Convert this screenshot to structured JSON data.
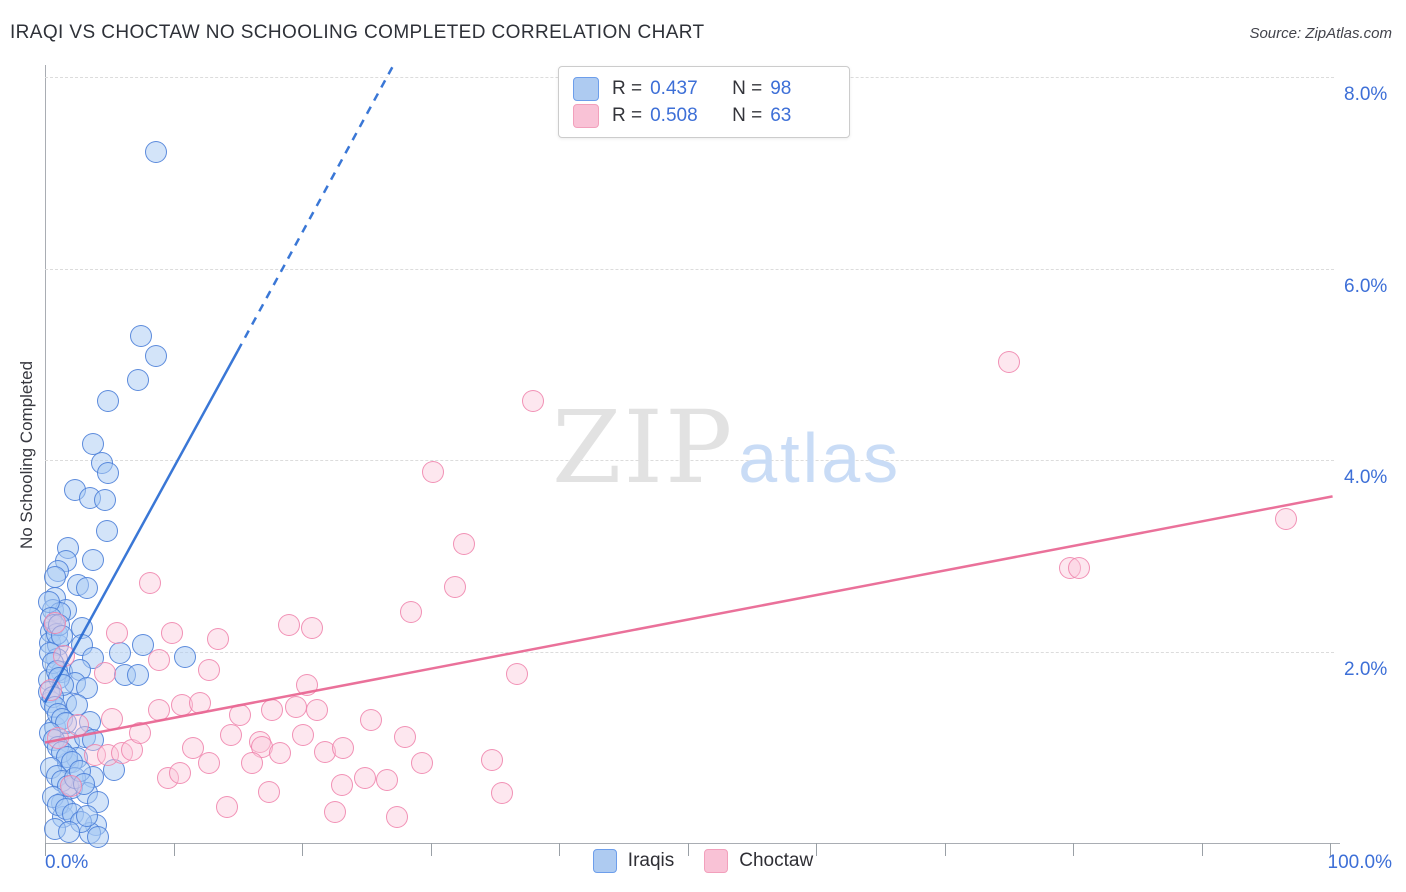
{
  "header": {
    "title": "IRAQI VS CHOCTAW NO SCHOOLING COMPLETED CORRELATION CHART",
    "source": "Source: ZipAtlas.com"
  },
  "watermark": {
    "zip": "ZIP",
    "atlas": "atlas"
  },
  "axes": {
    "y_label": "No Schooling Completed",
    "x_min_label": "0.0%",
    "x_max_label": "100.0%",
    "y_ticks": [
      {
        "value": 8,
        "label": "8.0%"
      },
      {
        "value": 6,
        "label": "6.0%"
      },
      {
        "value": 4,
        "label": "4.0%"
      },
      {
        "value": 2,
        "label": "2.0%"
      }
    ],
    "x_tick_values": [
      0,
      10,
      20,
      30,
      40,
      50,
      60,
      70,
      80,
      90,
      100
    ]
  },
  "legend_box": {
    "rows": [
      {
        "series": "iraqis",
        "r_label": "R =",
        "r_value": "0.437",
        "n_label": "N =",
        "n_value": "98"
      },
      {
        "series": "choctaw",
        "r_label": "R =",
        "r_value": "0.508",
        "n_label": "N =",
        "n_value": "63"
      }
    ]
  },
  "bottom_legend": [
    {
      "label": "Iraqis"
    },
    {
      "label": "Choctaw"
    }
  ],
  "colors": {
    "accent_blue": "#3d6fd7",
    "iraqis_fill": "#a8caf4",
    "iraqis_stroke": "#3e76d6",
    "choctaw_fill": "#fac6da",
    "choctaw_stroke": "#f082ac",
    "iraqis_trend": "#2568d2",
    "choctaw_trend": "#e8628f",
    "gridline": "#dcdcdc",
    "watermark_gray": "#e2e2e2",
    "watermark_blue": "#c9dcf6"
  },
  "chart_data": {
    "type": "scatter",
    "title": "IRAQI VS CHOCTAW NO SCHOOLING COMPLETED CORRELATION CHART",
    "xlabel": "",
    "ylabel": "No Schooling Completed",
    "x_range_percent": [
      0,
      100
    ],
    "y_range_percent": [
      0,
      8.33
    ],
    "grid": "horizontal-dashed",
    "legend_position": "bottom-center",
    "series": [
      {
        "name": "Iraqis",
        "R": 0.437,
        "N": 98,
        "points": [
          [
            8.6,
            7.22
          ],
          [
            7.5,
            5.3
          ],
          [
            8.6,
            5.09
          ],
          [
            7.2,
            4.84
          ],
          [
            4.9,
            4.62
          ],
          [
            3.7,
            4.17
          ],
          [
            4.4,
            3.97
          ],
          [
            4.9,
            3.86
          ],
          [
            2.3,
            3.69
          ],
          [
            3.5,
            3.6
          ],
          [
            4.7,
            3.58
          ],
          [
            4.8,
            3.26
          ],
          [
            1.8,
            3.08
          ],
          [
            3.7,
            2.96
          ],
          [
            1.6,
            2.94
          ],
          [
            1.0,
            2.84
          ],
          [
            0.8,
            2.78
          ],
          [
            2.6,
            2.69
          ],
          [
            3.3,
            2.66
          ],
          [
            0.8,
            2.56
          ],
          [
            0.6,
            2.43
          ],
          [
            1.6,
            2.43
          ],
          [
            1.2,
            2.4
          ],
          [
            2.9,
            2.25
          ],
          [
            0.5,
            2.2
          ],
          [
            0.4,
            2.09
          ],
          [
            1.0,
            2.07
          ],
          [
            2.9,
            2.07
          ],
          [
            7.6,
            2.07
          ],
          [
            5.8,
            1.98
          ],
          [
            3.7,
            1.93
          ],
          [
            10.9,
            1.94
          ],
          [
            0.9,
            1.92
          ],
          [
            1.3,
            1.79
          ],
          [
            2.7,
            1.81
          ],
          [
            6.2,
            1.75
          ],
          [
            7.2,
            1.75
          ],
          [
            0.3,
            1.7
          ],
          [
            2.3,
            1.67
          ],
          [
            3.3,
            1.62
          ],
          [
            0.5,
            1.47
          ],
          [
            1.6,
            1.46
          ],
          [
            2.5,
            1.44
          ],
          [
            3.5,
            1.26
          ],
          [
            0.8,
            1.21
          ],
          [
            1.9,
            1.06
          ],
          [
            3.1,
            1.11
          ],
          [
            3.7,
            1.08
          ],
          [
            1.8,
            0.84
          ],
          [
            2.5,
            0.89
          ],
          [
            5.4,
            0.76
          ],
          [
            3.7,
            0.69
          ],
          [
            2.1,
            0.57
          ],
          [
            3.3,
            0.52
          ],
          [
            1.3,
            0.42
          ],
          [
            4.1,
            0.43
          ],
          [
            1.4,
            0.27
          ],
          [
            4.0,
            0.19
          ],
          [
            3.5,
            0.1
          ],
          [
            4.1,
            0.06
          ],
          [
            0.3,
            2.52
          ],
          [
            0.5,
            2.35
          ],
          [
            0.7,
            2.28
          ],
          [
            0.9,
            2.18
          ],
          [
            1.1,
            2.28
          ],
          [
            1.3,
            2.16
          ],
          [
            0.4,
            1.98
          ],
          [
            0.6,
            1.88
          ],
          [
            0.9,
            1.8
          ],
          [
            1.1,
            1.72
          ],
          [
            1.4,
            1.65
          ],
          [
            0.3,
            1.58
          ],
          [
            0.6,
            1.52
          ],
          [
            0.8,
            1.42
          ],
          [
            1.0,
            1.35
          ],
          [
            1.3,
            1.3
          ],
          [
            1.6,
            1.25
          ],
          [
            0.4,
            1.15
          ],
          [
            0.7,
            1.08
          ],
          [
            1.0,
            1.0
          ],
          [
            1.3,
            0.95
          ],
          [
            1.7,
            0.9
          ],
          [
            2.1,
            0.85
          ],
          [
            0.5,
            0.78
          ],
          [
            0.9,
            0.7
          ],
          [
            1.3,
            0.65
          ],
          [
            1.8,
            0.6
          ],
          [
            2.3,
            0.68
          ],
          [
            2.7,
            0.75
          ],
          [
            3.0,
            0.62
          ],
          [
            0.6,
            0.48
          ],
          [
            1.0,
            0.4
          ],
          [
            1.6,
            0.35
          ],
          [
            2.2,
            0.3
          ],
          [
            2.8,
            0.22
          ],
          [
            3.3,
            0.28
          ],
          [
            0.8,
            0.15
          ],
          [
            1.9,
            0.12
          ]
        ]
      },
      {
        "name": "Choctaw",
        "R": 0.508,
        "N": 63,
        "points": [
          [
            75.0,
            5.02
          ],
          [
            38.0,
            4.62
          ],
          [
            30.2,
            3.87
          ],
          [
            32.6,
            3.12
          ],
          [
            31.9,
            2.67
          ],
          [
            28.5,
            2.41
          ],
          [
            36.7,
            1.77
          ],
          [
            96.6,
            3.38
          ],
          [
            79.8,
            2.87
          ],
          [
            80.5,
            2.87
          ],
          [
            8.2,
            2.72
          ],
          [
            5.6,
            2.19
          ],
          [
            9.9,
            2.19
          ],
          [
            13.5,
            2.13
          ],
          [
            20.8,
            2.25
          ],
          [
            19.0,
            2.28
          ],
          [
            8.9,
            1.91
          ],
          [
            12.8,
            1.81
          ],
          [
            4.7,
            1.78
          ],
          [
            10.7,
            1.44
          ],
          [
            12.1,
            1.46
          ],
          [
            8.9,
            1.39
          ],
          [
            15.2,
            1.34
          ],
          [
            17.7,
            1.39
          ],
          [
            19.5,
            1.42
          ],
          [
            20.4,
            1.65
          ],
          [
            21.2,
            1.39
          ],
          [
            14.5,
            1.13
          ],
          [
            16.7,
            1.06
          ],
          [
            16.9,
            1.0
          ],
          [
            18.3,
            0.94
          ],
          [
            20.1,
            1.13
          ],
          [
            11.5,
            0.99
          ],
          [
            12.8,
            0.84
          ],
          [
            16.1,
            0.84
          ],
          [
            9.6,
            0.68
          ],
          [
            10.5,
            0.73
          ],
          [
            21.8,
            0.95
          ],
          [
            23.2,
            0.99
          ],
          [
            23.1,
            0.61
          ],
          [
            24.9,
            0.68
          ],
          [
            26.6,
            0.66
          ],
          [
            17.4,
            0.53
          ],
          [
            14.2,
            0.38
          ],
          [
            22.6,
            0.32
          ],
          [
            27.4,
            0.27
          ],
          [
            28.0,
            1.11
          ],
          [
            25.4,
            1.28
          ],
          [
            29.3,
            0.84
          ],
          [
            34.8,
            0.87
          ],
          [
            35.6,
            0.52
          ],
          [
            2.6,
            1.23
          ],
          [
            3.9,
            0.92
          ],
          [
            4.9,
            0.92
          ],
          [
            6.0,
            0.94
          ],
          [
            6.8,
            0.97
          ],
          [
            1.5,
            1.95
          ],
          [
            0.8,
            2.3
          ],
          [
            0.5,
            1.6
          ],
          [
            1.0,
            1.1
          ],
          [
            2.0,
            0.6
          ],
          [
            5.2,
            1.3
          ],
          [
            7.4,
            1.15
          ]
        ]
      }
    ],
    "trend_lines": [
      {
        "series": "Iraqis",
        "solid": [
          [
            0,
            1.47
          ],
          [
            15.0,
            5.14
          ]
        ],
        "dashed": [
          [
            15.0,
            5.14
          ],
          [
            27.1,
            8.12
          ]
        ]
      },
      {
        "series": "Choctaw",
        "solid": [
          [
            0,
            1.05
          ],
          [
            100.2,
            3.62
          ]
        ]
      }
    ]
  }
}
